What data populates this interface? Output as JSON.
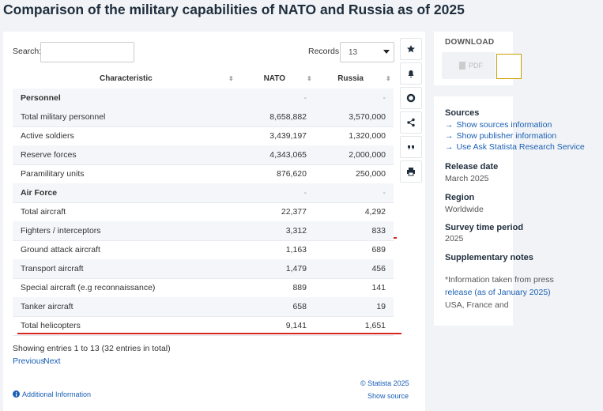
{
  "header": {
    "title": "Comparison of the military capabilities of NATO and Russia as of 2025"
  },
  "controls": {
    "search_label": "Search:",
    "records_label": "Records:",
    "records_value": "13"
  },
  "table": {
    "columns": [
      "Characteristic",
      "NATO",
      "Russia"
    ],
    "rows": [
      [
        "Personnel",
        "-",
        "-"
      ],
      [
        "Total military personnel",
        "8,658,882",
        "3,570,000"
      ],
      [
        "Active soldiers",
        "3,439,197",
        "1,320,000"
      ],
      [
        "Reserve forces",
        "4,343,065",
        "2,000,000"
      ],
      [
        "Paramilitary units",
        "876,620",
        "250,000"
      ],
      [
        "Air Force",
        "-",
        "-"
      ],
      [
        "Total aircraft",
        "22,377",
        "4,292"
      ],
      [
        "Fighters / interceptors",
        "3,312",
        "833"
      ],
      [
        "Ground attack aircraft",
        "1,163",
        "689"
      ],
      [
        "Transport aircraft",
        "1,479",
        "456"
      ],
      [
        "Special aircraft (e.g reconnaissance)",
        "889",
        "141"
      ],
      [
        "Tanker aircraft",
        "658",
        "19"
      ],
      [
        "Total helicopters",
        "9,141",
        "1,651"
      ]
    ]
  },
  "footer": {
    "entries": "Showing entries 1 to 13 (32 entries in total)",
    "previous": "Previous",
    "next": "Next",
    "additional_info": "Additional Information",
    "copyright": "© Statista 2025",
    "show_source": "Show source"
  },
  "sidebar": {
    "download": "DOWNLOAD",
    "pdf": "PDF",
    "sources_heading": "Sources",
    "source_links": [
      "Show sources information",
      "Show publisher information",
      "Use Ask Statista Research Service"
    ],
    "release_heading": "Release date",
    "release_value": "March 2025",
    "region_heading": "Region",
    "region_value": "Worldwide",
    "survey_heading": "Survey time period",
    "survey_value": "2025",
    "supplementary_heading": "Supplementary notes",
    "note": [
      "*Information taken from press",
      "release (as of January 2025)",
      "USA, France and"
    ]
  }
}
